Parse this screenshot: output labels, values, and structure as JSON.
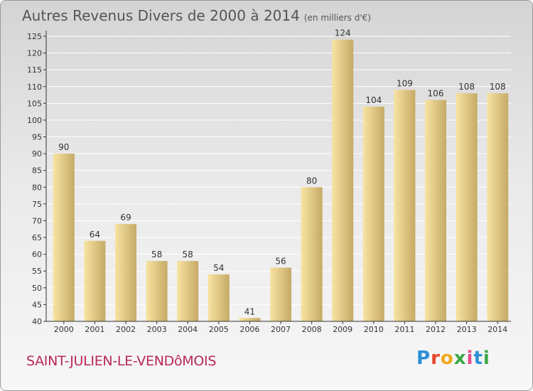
{
  "title": "Autres Revenus Divers de 2000 à 2014",
  "unit_note": "(en milliers d'€)",
  "commune": "SAINT-JULIEN-LE-VENDôMOIS",
  "logo": {
    "letters": [
      "P",
      "r",
      "o",
      "x",
      "i",
      "t",
      "i"
    ],
    "colors": [
      "#2c8fd6",
      "#e8452c",
      "#f0a81c",
      "#3aa845",
      "#e84a8c",
      "#2c8fd6",
      "#3aa845"
    ]
  },
  "colors": {
    "bar_light": "#f7dd94",
    "bar_dark": "#c8ad6a",
    "axis": "#333333",
    "grid": "#ffffff"
  },
  "chart_data": {
    "type": "bar",
    "categories": [
      "2000",
      "2001",
      "2002",
      "2003",
      "2004",
      "2005",
      "2006",
      "2007",
      "2008",
      "2009",
      "2010",
      "2011",
      "2012",
      "2013",
      "2014"
    ],
    "values": [
      90,
      64,
      69,
      58,
      58,
      54,
      41,
      56,
      80,
      124,
      104,
      109,
      106,
      108,
      108
    ],
    "data_labels": [
      "90",
      "64",
      "69",
      "58",
      "58",
      "54",
      "41",
      "56",
      "80",
      "124",
      "104",
      "109",
      "106",
      "108",
      "108"
    ],
    "yticks": [
      "40",
      "45",
      "50",
      "55",
      "60",
      "65",
      "70",
      "75",
      "80",
      "85",
      "90",
      "95",
      "100",
      "105",
      "110",
      "115",
      "120",
      "125"
    ],
    "ylim": [
      40,
      125
    ],
    "grid": true
  }
}
